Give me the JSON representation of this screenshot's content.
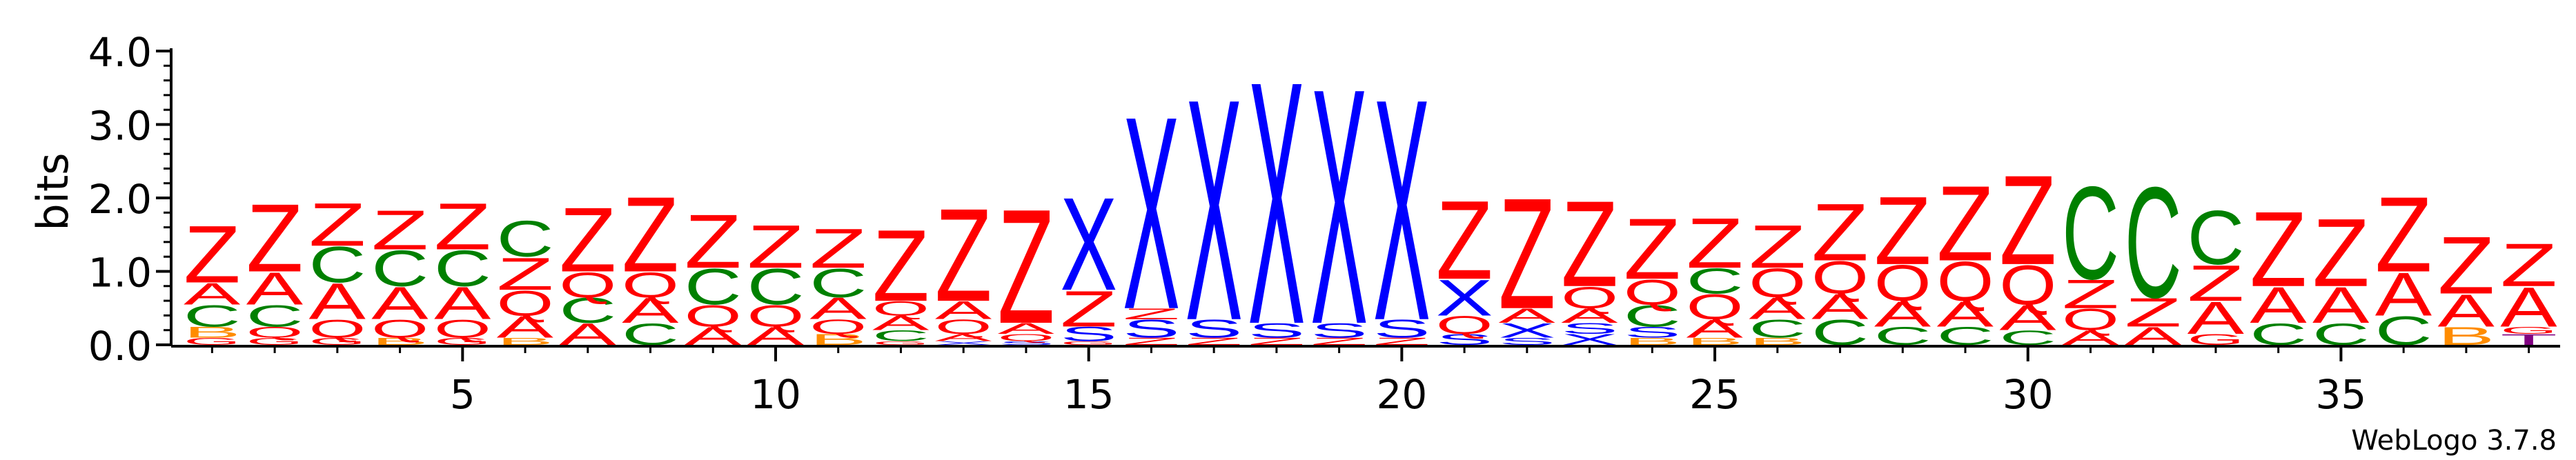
{
  "chart_data": {
    "type": "sequence-logo",
    "ylabel": "bits",
    "ylim": [
      0,
      4.0
    ],
    "yticks": [
      "0.0",
      "1.0",
      "2.0",
      "3.0",
      "4.0"
    ],
    "xticks": [
      5,
      10,
      15,
      20,
      25,
      30,
      35
    ],
    "positions": 38,
    "footer": "WebLogo 3.7.8",
    "colors": {
      "Z": "#ff0000",
      "A": "#ff0000",
      "Q": "#ff0000",
      "X": "#0000ff",
      "S": "#0000ff",
      "C": "#008000",
      "B": "#ff8c00",
      "G": "#ff0000",
      "T": "#800080"
    },
    "stacks": [
      {
        "pos": 1,
        "letters": [
          [
            "G",
            0.1
          ],
          [
            "B",
            0.15
          ],
          [
            "C",
            0.3
          ],
          [
            "A",
            0.3
          ],
          [
            "Z",
            0.8
          ]
        ]
      },
      {
        "pos": 2,
        "letters": [
          [
            "G",
            0.1
          ],
          [
            "Q",
            0.15
          ],
          [
            "C",
            0.3
          ],
          [
            "A",
            0.45
          ],
          [
            "Z",
            0.95
          ]
        ]
      },
      {
        "pos": 3,
        "letters": [
          [
            "G",
            0.1
          ],
          [
            "Q",
            0.25
          ],
          [
            "A",
            0.5
          ],
          [
            "C",
            0.5
          ],
          [
            "Z",
            0.6
          ]
        ]
      },
      {
        "pos": 4,
        "letters": [
          [
            "B",
            0.1
          ],
          [
            "Q",
            0.25
          ],
          [
            "A",
            0.45
          ],
          [
            "C",
            0.5
          ],
          [
            "Z",
            0.55
          ]
        ]
      },
      {
        "pos": 5,
        "letters": [
          [
            "G",
            0.1
          ],
          [
            "Q",
            0.25
          ],
          [
            "A",
            0.45
          ],
          [
            "C",
            0.5
          ],
          [
            "Z",
            0.65
          ]
        ]
      },
      {
        "pos": 6,
        "letters": [
          [
            "B",
            0.1
          ],
          [
            "A",
            0.3
          ],
          [
            "Q",
            0.35
          ],
          [
            "Z",
            0.45
          ],
          [
            "C",
            0.5
          ]
        ]
      },
      {
        "pos": 7,
        "letters": [
          [
            "A",
            0.3
          ],
          [
            "C",
            0.35
          ],
          [
            "Q",
            0.35
          ],
          [
            "Z",
            0.9
          ]
        ]
      },
      {
        "pos": 8,
        "letters": [
          [
            "C",
            0.3
          ],
          [
            "A",
            0.35
          ],
          [
            "Q",
            0.35
          ],
          [
            "Z",
            1.05
          ]
        ]
      },
      {
        "pos": 9,
        "letters": [
          [
            "A",
            0.25
          ],
          [
            "Q",
            0.3
          ],
          [
            "C",
            0.5
          ],
          [
            "Z",
            0.75
          ]
        ]
      },
      {
        "pos": 10,
        "letters": [
          [
            "A",
            0.25
          ],
          [
            "Q",
            0.3
          ],
          [
            "C",
            0.5
          ],
          [
            "Z",
            0.6
          ]
        ]
      },
      {
        "pos": 11,
        "letters": [
          [
            "B",
            0.15
          ],
          [
            "Q",
            0.2
          ],
          [
            "A",
            0.3
          ],
          [
            "C",
            0.4
          ],
          [
            "Z",
            0.55
          ]
        ]
      },
      {
        "pos": 12,
        "letters": [
          [
            "G",
            0.05
          ],
          [
            "C",
            0.15
          ],
          [
            "A",
            0.2
          ],
          [
            "Q",
            0.2
          ],
          [
            "Z",
            1.0
          ]
        ]
      },
      {
        "pos": 13,
        "letters": [
          [
            "X",
            0.05
          ],
          [
            "A",
            0.1
          ],
          [
            "Q",
            0.2
          ],
          [
            "A",
            0.25
          ],
          [
            "Z",
            1.3
          ]
        ]
      },
      {
        "pos": 14,
        "letters": [
          [
            "S",
            0.05
          ],
          [
            "Q",
            0.1
          ],
          [
            "A",
            0.15
          ],
          [
            "Z",
            1.6
          ]
        ]
      },
      {
        "pos": 15,
        "letters": [
          [
            "G",
            0.05
          ],
          [
            "S",
            0.2
          ],
          [
            "Z",
            0.5
          ],
          [
            "X",
            1.3
          ]
        ]
      },
      {
        "pos": 16,
        "letters": [
          [
            "Z",
            0.1
          ],
          [
            "S",
            0.25
          ],
          [
            "Z",
            0.15
          ],
          [
            "X",
            2.7
          ]
        ]
      },
      {
        "pos": 17,
        "letters": [
          [
            "Z",
            0.1
          ],
          [
            "S",
            0.25
          ],
          [
            "X",
            3.1
          ]
        ]
      },
      {
        "pos": 18,
        "letters": [
          [
            "Z",
            0.1
          ],
          [
            "S",
            0.2
          ],
          [
            "X",
            3.4
          ]
        ]
      },
      {
        "pos": 19,
        "letters": [
          [
            "Z",
            0.1
          ],
          [
            "S",
            0.2
          ],
          [
            "X",
            3.3
          ]
        ]
      },
      {
        "pos": 20,
        "letters": [
          [
            "Z",
            0.1
          ],
          [
            "S",
            0.25
          ],
          [
            "X",
            3.1
          ]
        ]
      },
      {
        "pos": 21,
        "letters": [
          [
            "S",
            0.15
          ],
          [
            "Q",
            0.25
          ],
          [
            "X",
            0.5
          ],
          [
            "Z",
            1.1
          ]
        ]
      },
      {
        "pos": 22,
        "letters": [
          [
            "S",
            0.1
          ],
          [
            "X",
            0.2
          ],
          [
            "A",
            0.2
          ],
          [
            "Z",
            1.55
          ]
        ]
      },
      {
        "pos": 23,
        "letters": [
          [
            "X",
            0.15
          ],
          [
            "S",
            0.15
          ],
          [
            "A",
            0.2
          ],
          [
            "Q",
            0.3
          ],
          [
            "Z",
            1.2
          ]
        ]
      },
      {
        "pos": 24,
        "letters": [
          [
            "B",
            0.1
          ],
          [
            "S",
            0.15
          ],
          [
            "C",
            0.3
          ],
          [
            "Q",
            0.35
          ],
          [
            "Z",
            0.85
          ]
        ]
      },
      {
        "pos": 25,
        "letters": [
          [
            "B",
            0.1
          ],
          [
            "A",
            0.25
          ],
          [
            "Q",
            0.35
          ],
          [
            "C",
            0.35
          ],
          [
            "Z",
            0.7
          ]
        ]
      },
      {
        "pos": 26,
        "letters": [
          [
            "B",
            0.1
          ],
          [
            "C",
            0.25
          ],
          [
            "A",
            0.3
          ],
          [
            "Q",
            0.4
          ],
          [
            "Z",
            0.6
          ]
        ]
      },
      {
        "pos": 27,
        "letters": [
          [
            "C",
            0.35
          ],
          [
            "A",
            0.35
          ],
          [
            "Q",
            0.45
          ],
          [
            "Z",
            0.8
          ]
        ]
      },
      {
        "pos": 28,
        "letters": [
          [
            "C",
            0.25
          ],
          [
            "A",
            0.35
          ],
          [
            "Q",
            0.5
          ],
          [
            "Z",
            0.95
          ]
        ]
      },
      {
        "pos": 29,
        "letters": [
          [
            "C",
            0.25
          ],
          [
            "A",
            0.35
          ],
          [
            "Q",
            0.55
          ],
          [
            "Z",
            1.05
          ]
        ]
      },
      {
        "pos": 30,
        "letters": [
          [
            "C",
            0.2
          ],
          [
            "A",
            0.35
          ],
          [
            "Q",
            0.55
          ],
          [
            "Z",
            1.25
          ]
        ]
      },
      {
        "pos": 31,
        "letters": [
          [
            "A",
            0.2
          ],
          [
            "Q",
            0.3
          ],
          [
            "Z",
            0.4
          ],
          [
            "C",
            1.3
          ]
        ]
      },
      {
        "pos": 32,
        "letters": [
          [
            "A",
            0.25
          ],
          [
            "Z",
            0.4
          ],
          [
            "C",
            1.55
          ]
        ]
      },
      {
        "pos": 33,
        "letters": [
          [
            "G",
            0.15
          ],
          [
            "A",
            0.45
          ],
          [
            "Z",
            0.5
          ],
          [
            "C",
            0.75
          ]
        ]
      },
      {
        "pos": 34,
        "letters": [
          [
            "C",
            0.3
          ],
          [
            "A",
            0.5
          ],
          [
            "Z",
            1.05
          ]
        ]
      },
      {
        "pos": 35,
        "letters": [
          [
            "C",
            0.3
          ],
          [
            "A",
            0.5
          ],
          [
            "Z",
            0.95
          ]
        ]
      },
      {
        "pos": 36,
        "letters": [
          [
            "C",
            0.4
          ],
          [
            "A",
            0.6
          ],
          [
            "Z",
            1.05
          ]
        ]
      },
      {
        "pos": 37,
        "letters": [
          [
            "B",
            0.25
          ],
          [
            "A",
            0.45
          ],
          [
            "Z",
            0.8
          ]
        ]
      },
      {
        "pos": 38,
        "letters": [
          [
            "T",
            0.15
          ],
          [
            "G",
            0.1
          ],
          [
            "A",
            0.55
          ],
          [
            "Z",
            0.6
          ]
        ]
      }
    ]
  }
}
